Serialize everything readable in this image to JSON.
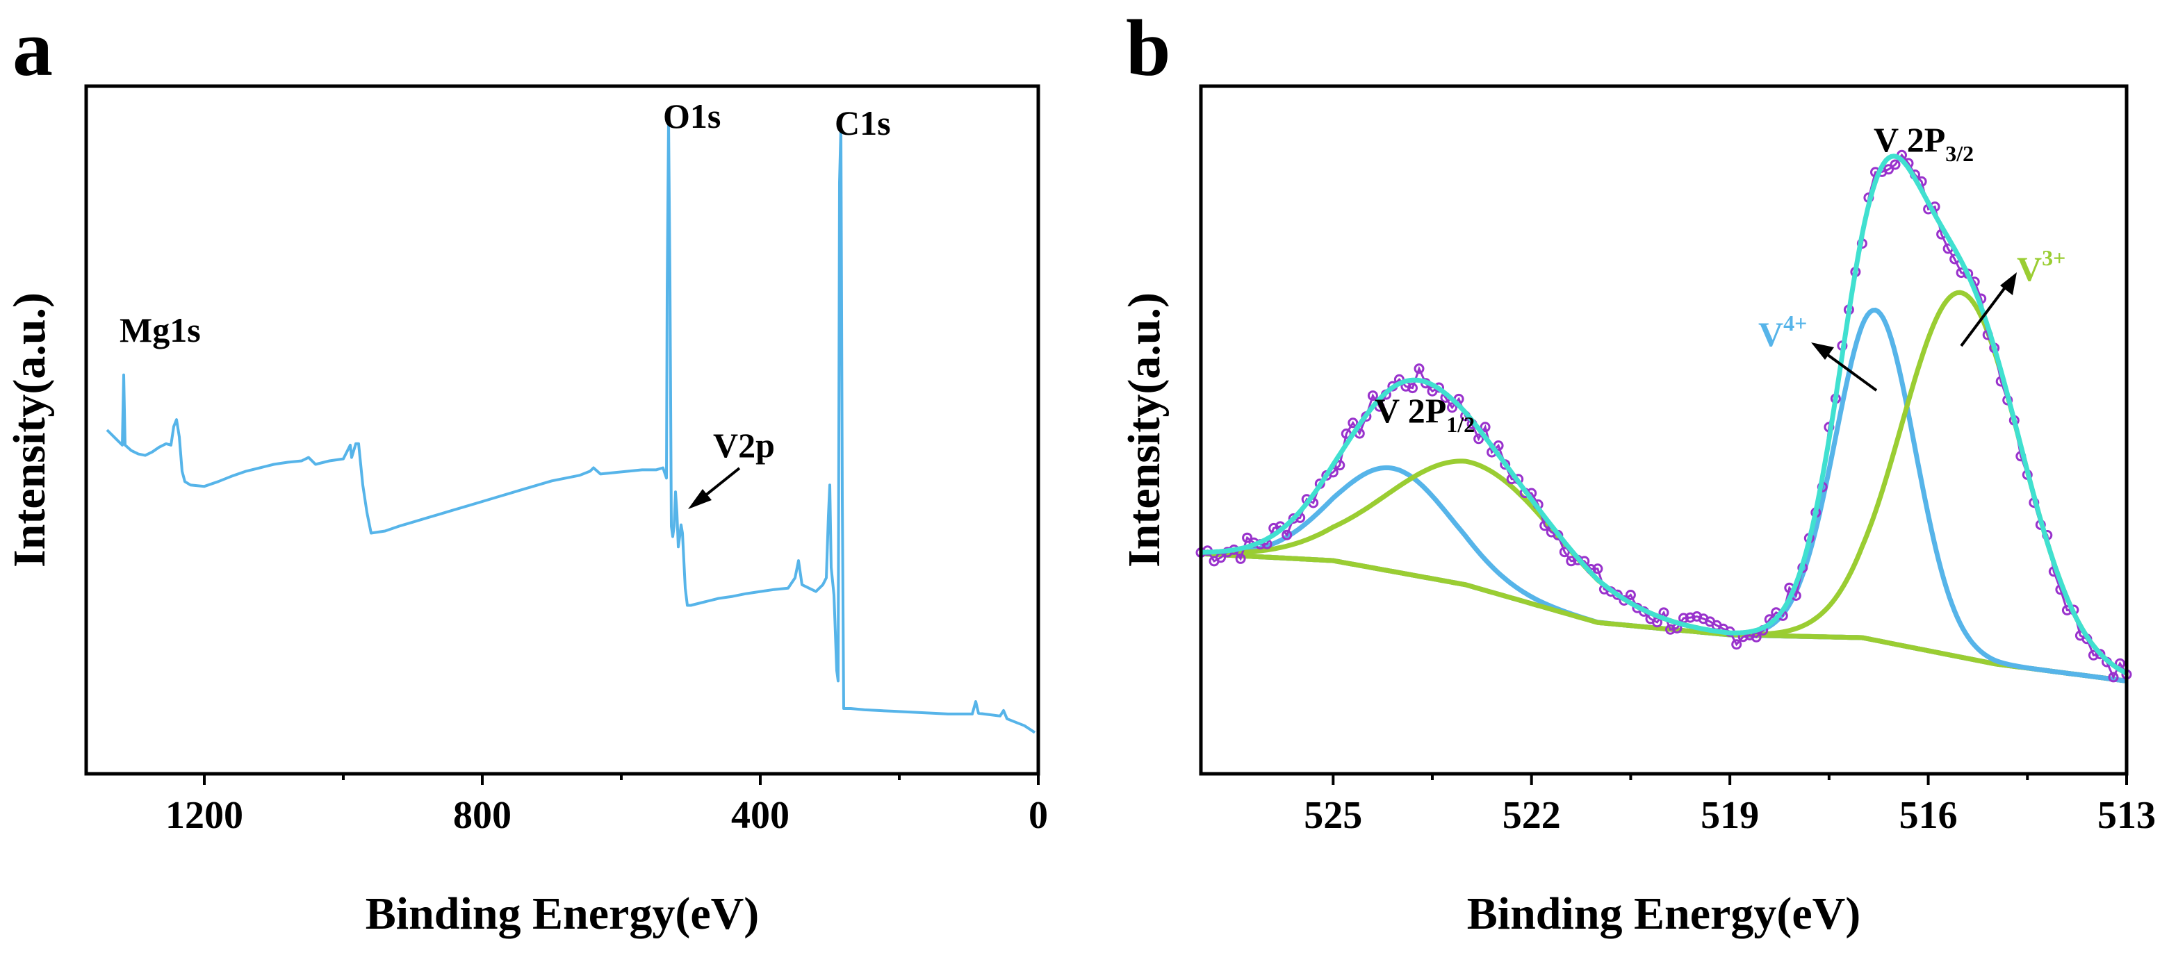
{
  "figure": {
    "panels": [
      "a",
      "b"
    ]
  },
  "chart_data": [
    {
      "panel": "a",
      "type": "line",
      "xlabel": "Binding Energy(eV)",
      "ylabel": "Intensity(a.u.)",
      "xlim": [
        1370,
        0
      ],
      "ylim": [
        0,
        1
      ],
      "xticks": [
        1200,
        800,
        400,
        0
      ],
      "grid": false,
      "series": [
        {
          "name": "survey",
          "color": "#56b4e9",
          "points": [
            [
              1340,
              0.5
            ],
            [
              1330,
              0.49
            ],
            [
              1325,
              0.485
            ],
            [
              1318,
              0.478
            ],
            [
              1316,
              0.58
            ],
            [
              1314,
              0.478
            ],
            [
              1305,
              0.47
            ],
            [
              1295,
              0.465
            ],
            [
              1285,
              0.463
            ],
            [
              1275,
              0.468
            ],
            [
              1265,
              0.475
            ],
            [
              1255,
              0.48
            ],
            [
              1248,
              0.478
            ],
            [
              1244,
              0.505
            ],
            [
              1240,
              0.515
            ],
            [
              1236,
              0.49
            ],
            [
              1232,
              0.44
            ],
            [
              1228,
              0.425
            ],
            [
              1220,
              0.42
            ],
            [
              1200,
              0.418
            ],
            [
              1180,
              0.425
            ],
            [
              1160,
              0.433
            ],
            [
              1140,
              0.44
            ],
            [
              1120,
              0.445
            ],
            [
              1100,
              0.45
            ],
            [
              1080,
              0.453
            ],
            [
              1060,
              0.455
            ],
            [
              1050,
              0.46
            ],
            [
              1040,
              0.45
            ],
            [
              1020,
              0.455
            ],
            [
              1000,
              0.458
            ],
            [
              990,
              0.478
            ],
            [
              988,
              0.46
            ],
            [
              982,
              0.48
            ],
            [
              978,
              0.48
            ],
            [
              972,
              0.42
            ],
            [
              966,
              0.38
            ],
            [
              960,
              0.35
            ],
            [
              940,
              0.353
            ],
            [
              920,
              0.36
            ],
            [
              900,
              0.366
            ],
            [
              880,
              0.372
            ],
            [
              860,
              0.378
            ],
            [
              840,
              0.384
            ],
            [
              820,
              0.39
            ],
            [
              800,
              0.396
            ],
            [
              780,
              0.402
            ],
            [
              760,
              0.408
            ],
            [
              740,
              0.414
            ],
            [
              720,
              0.42
            ],
            [
              700,
              0.426
            ],
            [
              680,
              0.43
            ],
            [
              660,
              0.434
            ],
            [
              645,
              0.44
            ],
            [
              640,
              0.445
            ],
            [
              630,
              0.436
            ],
            [
              610,
              0.438
            ],
            [
              590,
              0.44
            ],
            [
              570,
              0.442
            ],
            [
              550,
              0.442
            ],
            [
              540,
              0.445
            ],
            [
              535,
              0.43
            ],
            [
              534,
              0.7
            ],
            [
              532,
              0.95
            ],
            [
              530,
              0.72
            ],
            [
              528,
              0.36
            ],
            [
              526,
              0.345
            ],
            [
              524,
              0.36
            ],
            [
              522,
              0.41
            ],
            [
              520,
              0.38
            ],
            [
              518,
              0.33
            ],
            [
              516,
              0.345
            ],
            [
              514,
              0.362
            ],
            [
              512,
              0.35
            ],
            [
              508,
              0.27
            ],
            [
              505,
              0.245
            ],
            [
              500,
              0.245
            ],
            [
              480,
              0.25
            ],
            [
              460,
              0.255
            ],
            [
              440,
              0.258
            ],
            [
              420,
              0.262
            ],
            [
              400,
              0.265
            ],
            [
              380,
              0.268
            ],
            [
              360,
              0.27
            ],
            [
              350,
              0.285
            ],
            [
              345,
              0.31
            ],
            [
              340,
              0.275
            ],
            [
              320,
              0.265
            ],
            [
              310,
              0.275
            ],
            [
              305,
              0.285
            ],
            [
              302,
              0.375
            ],
            [
              300,
              0.42
            ],
            [
              298,
              0.3
            ],
            [
              294,
              0.26
            ],
            [
              290,
              0.15
            ],
            [
              288,
              0.135
            ],
            [
              286,
              0.86
            ],
            [
              284,
              0.94
            ],
            [
              282,
              0.4
            ],
            [
              280,
              0.095
            ],
            [
              270,
              0.095
            ],
            [
              250,
              0.093
            ],
            [
              230,
              0.092
            ],
            [
              210,
              0.091
            ],
            [
              190,
              0.09
            ],
            [
              170,
              0.089
            ],
            [
              150,
              0.088
            ],
            [
              130,
              0.087
            ],
            [
              110,
              0.087
            ],
            [
              95,
              0.087
            ],
            [
              90,
              0.105
            ],
            [
              86,
              0.088
            ],
            [
              70,
              0.086
            ],
            [
              55,
              0.084
            ],
            [
              50,
              0.092
            ],
            [
              45,
              0.08
            ],
            [
              35,
              0.076
            ],
            [
              20,
              0.07
            ],
            [
              5,
              0.06
            ]
          ]
        }
      ],
      "annotations": [
        {
          "label": "Mg1s",
          "x": 1316
        },
        {
          "label": "O1s",
          "x": 532
        },
        {
          "label": "C1s",
          "x": 284
        },
        {
          "label": "V2p",
          "x": 517,
          "arrow": true
        }
      ]
    },
    {
      "panel": "b",
      "type": "line",
      "xlabel": "Binding Energy(eV)",
      "ylabel": "Intensity(a.u.)",
      "xlim": [
        527,
        513
      ],
      "ylim": [
        0,
        1
      ],
      "xticks": [
        525,
        522,
        519,
        516,
        513
      ],
      "grid": false,
      "series": [
        {
          "name": "background",
          "color": "#daa520",
          "baseline": [
            [
              527,
              0.32
            ],
            [
              525,
              0.31
            ],
            [
              523,
              0.275
            ],
            [
              521,
              0.22
            ],
            [
              519,
              0.202
            ],
            [
              517,
              0.198
            ],
            [
              515,
              0.16
            ],
            [
              513,
              0.135
            ]
          ]
        },
        {
          "name": "V4+ 2p1/2",
          "color": "#56b4e9",
          "center": 524.1,
          "sigma": 0.9,
          "height": 0.15
        },
        {
          "name": "V3+ 2p1/2",
          "color": "#9acd32",
          "center": 522.9,
          "sigma": 1.3,
          "height": 0.18
        },
        {
          "name": "V4+ 2p3/2",
          "color": "#56b4e9",
          "center": 516.8,
          "sigma": 0.6,
          "height": 0.48
        },
        {
          "name": "V3+ 2p3/2",
          "color": "#9acd32",
          "center": 515.5,
          "sigma": 0.9,
          "height": 0.53
        },
        {
          "name": "envelope",
          "color": "#40e0d0"
        },
        {
          "name": "raw data",
          "color": "#9932cc",
          "marker": "circle"
        }
      ],
      "annotations": [
        {
          "label": "V 2P",
          "sub": "1/2",
          "x": 523.8
        },
        {
          "label": "V 2P",
          "sub": "3/2",
          "x": 516.4
        },
        {
          "label": "V",
          "sup": "4+",
          "color": "#56b4e9",
          "arrow_to": 516.9
        },
        {
          "label": "V",
          "sup": "3+",
          "color": "#9acd32",
          "arrow_to": 515.6
        }
      ]
    }
  ]
}
